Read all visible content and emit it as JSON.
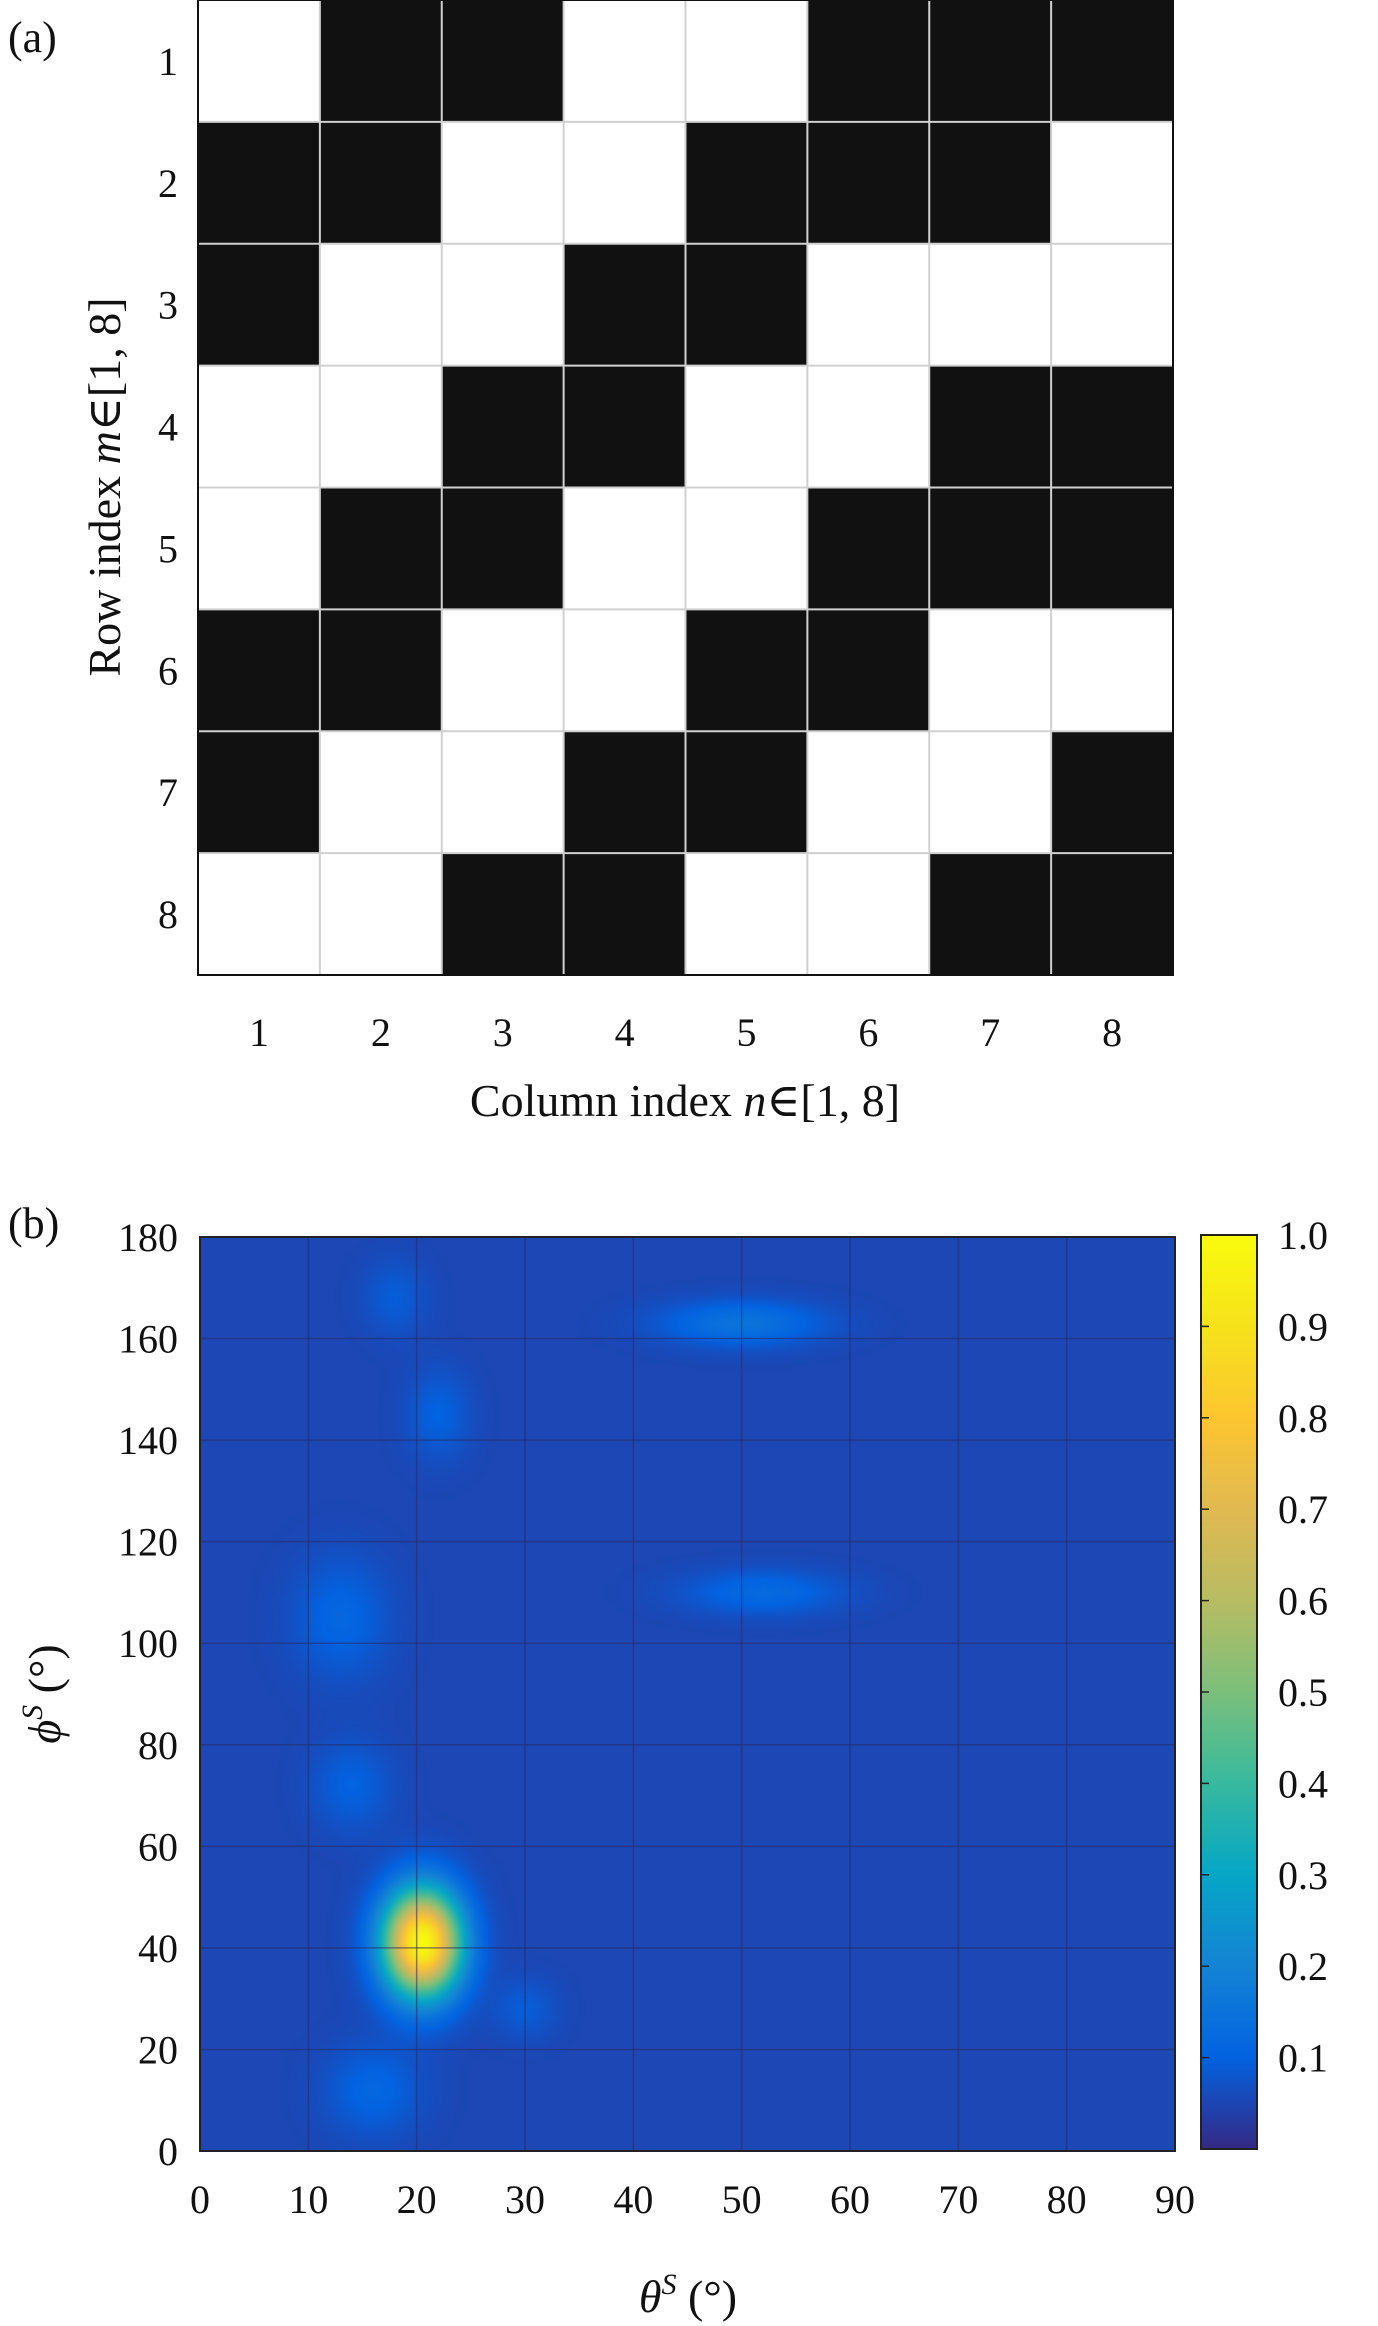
{
  "chart_data": [
    {
      "type": "heatmap",
      "panel_label": "(a)",
      "xlabel": "Column index n∈[1, 8]",
      "xlabel_parts": {
        "pre": "Column index ",
        "var": "n",
        "post": "∈[1, 8]"
      },
      "ylabel": "Row index m∈[1, 8]",
      "ylabel_parts": {
        "pre": "Row index ",
        "var": "m",
        "post": "∈[1, 8]"
      },
      "x_ticks": [
        "1",
        "2",
        "3",
        "4",
        "5",
        "6",
        "7",
        "8"
      ],
      "y_ticks": [
        "1",
        "2",
        "3",
        "4",
        "5",
        "6",
        "7",
        "8"
      ],
      "values": [
        [
          1,
          0,
          0,
          1,
          1,
          0,
          0,
          0
        ],
        [
          0,
          0,
          1,
          1,
          0,
          0,
          0,
          1
        ],
        [
          0,
          1,
          1,
          0,
          0,
          1,
          1,
          1
        ],
        [
          1,
          1,
          0,
          0,
          1,
          1,
          0,
          0
        ],
        [
          1,
          0,
          0,
          1,
          1,
          0,
          0,
          0
        ],
        [
          0,
          0,
          1,
          1,
          0,
          0,
          1,
          1
        ],
        [
          0,
          1,
          1,
          0,
          0,
          1,
          1,
          0
        ],
        [
          1,
          1,
          0,
          0,
          1,
          1,
          0,
          0
        ]
      ],
      "colors": {
        "one": "#ffffff",
        "zero": "#111111",
        "grid": "#d0d0d0"
      }
    },
    {
      "type": "heatmap",
      "panel_label": "(b)",
      "xlabel": "θS (°)",
      "xlabel_parts": {
        "var": "θ",
        "sup": "S",
        "post": " (°)"
      },
      "ylabel": "ϕS (°)",
      "ylabel_parts": {
        "var": "ϕ",
        "sup": "S",
        "post": " (°)"
      },
      "xlim": [
        0,
        90
      ],
      "ylim": [
        0,
        180
      ],
      "x_ticks": [
        0,
        10,
        20,
        30,
        40,
        50,
        60,
        70,
        80,
        90
      ],
      "y_ticks": [
        0,
        20,
        40,
        60,
        80,
        100,
        120,
        140,
        160,
        180
      ],
      "grid": true,
      "background_value": 0.05,
      "peaks": [
        {
          "theta": 20.5,
          "phi": 41,
          "amplitude": 0.95,
          "sigma_theta": 2.4,
          "sigma_phi": 7
        },
        {
          "theta": 50,
          "phi": 163,
          "amplitude": 0.1,
          "sigma_theta": 5,
          "sigma_phi": 3
        },
        {
          "theta": 52,
          "phi": 110,
          "amplitude": 0.07,
          "sigma_theta": 5,
          "sigma_phi": 3
        },
        {
          "theta": 13,
          "phi": 105,
          "amplitude": 0.06,
          "sigma_theta": 3,
          "sigma_phi": 8
        },
        {
          "theta": 16,
          "phi": 12,
          "amplitude": 0.06,
          "sigma_theta": 3,
          "sigma_phi": 6
        },
        {
          "theta": 14,
          "phi": 72,
          "amplitude": 0.05,
          "sigma_theta": 2.5,
          "sigma_phi": 6
        },
        {
          "theta": 22,
          "phi": 145,
          "amplitude": 0.05,
          "sigma_theta": 2,
          "sigma_phi": 6
        },
        {
          "theta": 18,
          "phi": 168,
          "amplitude": 0.04,
          "sigma_theta": 2,
          "sigma_phi": 5
        },
        {
          "theta": 30,
          "phi": 28,
          "amplitude": 0.04,
          "sigma_theta": 2,
          "sigma_phi": 4
        }
      ],
      "colorbar": {
        "range": [
          0,
          1
        ],
        "tick_values": [
          0.1,
          0.2,
          0.3,
          0.4,
          0.5,
          0.6,
          0.7,
          0.8,
          0.9,
          1.0
        ],
        "tick_labels": [
          "0.1",
          "0.2",
          "0.3",
          "0.4",
          "0.5",
          "0.6",
          "0.7",
          "0.8",
          "0.9",
          "1.0"
        ],
        "colormap": "parula"
      }
    }
  ]
}
